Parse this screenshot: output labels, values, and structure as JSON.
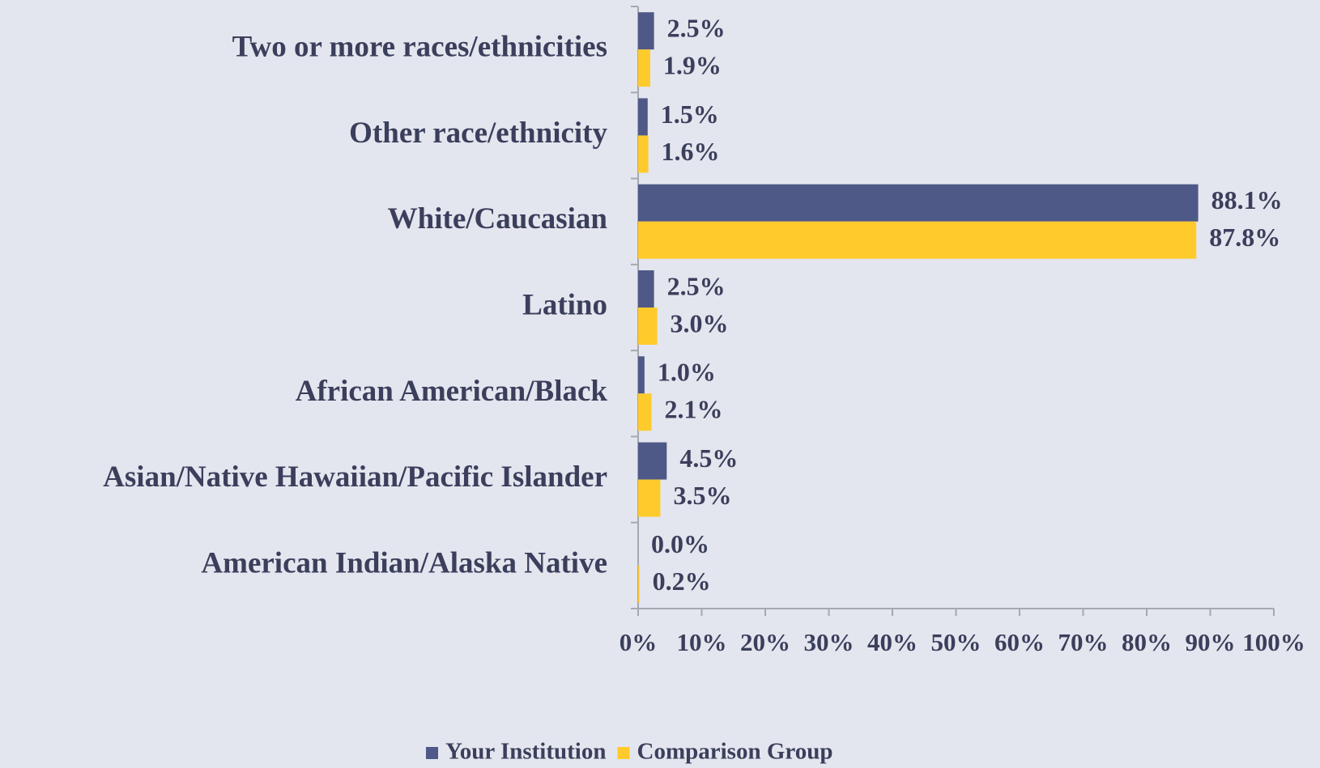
{
  "chart_data": {
    "type": "hbar",
    "categories": [
      "Two or more races/ethnicities",
      "Other race/ethnicity",
      "White/Caucasian",
      "Latino",
      "African American/Black",
      "Asian/Native Hawaiian/Pacific Islander",
      "American Indian/Alaska Native"
    ],
    "series": [
      {
        "name": "Your Institution",
        "color": "#4f5987",
        "values": [
          2.5,
          1.5,
          88.1,
          2.5,
          1.0,
          4.5,
          0.0
        ],
        "value_labels": [
          "2.5%",
          "1.5%",
          "88.1%",
          "2.5%",
          "1.0%",
          "4.5%",
          "0.0%"
        ]
      },
      {
        "name": "Comparison Group",
        "color": "#ffca2c",
        "values": [
          1.9,
          1.6,
          87.8,
          3.0,
          2.1,
          3.5,
          0.2
        ],
        "value_labels": [
          "1.9%",
          "1.6%",
          "87.8%",
          "3.0%",
          "2.1%",
          "3.5%",
          "0.2%"
        ]
      }
    ],
    "xlim": [
      0,
      100
    ],
    "xticks": [
      {
        "value": 0,
        "label": "0%"
      },
      {
        "value": 10,
        "label": "10%"
      },
      {
        "value": 20,
        "label": "20%"
      },
      {
        "value": 30,
        "label": "30%"
      },
      {
        "value": 40,
        "label": "40%"
      },
      {
        "value": 50,
        "label": "50%"
      },
      {
        "value": 60,
        "label": "60%"
      },
      {
        "value": 70,
        "label": "70%"
      },
      {
        "value": 80,
        "label": "80%"
      },
      {
        "value": 90,
        "label": "90%"
      },
      {
        "value": 100,
        "label": "100%"
      }
    ],
    "legend": "bottom"
  }
}
